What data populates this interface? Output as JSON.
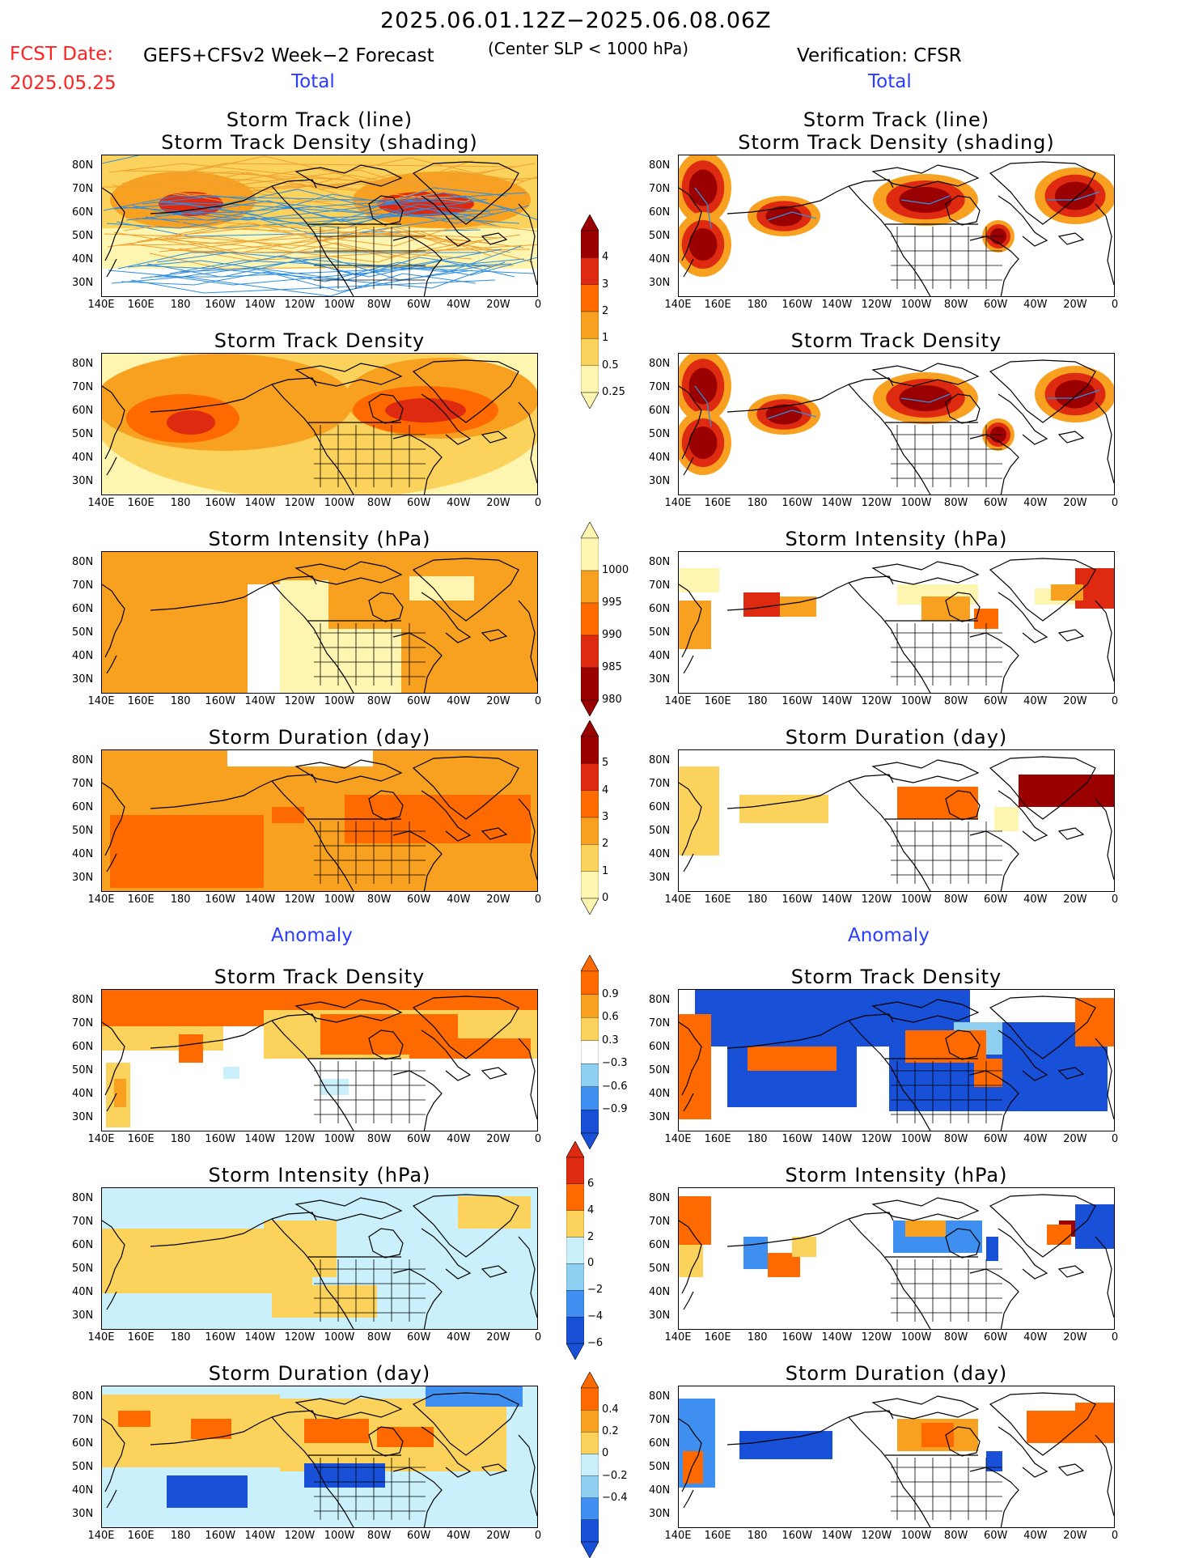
{
  "header": {
    "date_range": "2025.06.01.12Z−2025.06.08.06Z",
    "fcst_date_label": "FCST Date:",
    "fcst_date_value": "2025.05.25",
    "forecast_title": "GEFS+CFSv2 Week−2 Forecast",
    "criterion": "(Center SLP < 1000 hPa)",
    "verification": "Verification: CFSR",
    "total_left": "Total",
    "total_right": "Total",
    "anomaly_left": "Anomaly",
    "anomaly_right": "Anomaly"
  },
  "lat_labels": [
    "80N",
    "70N",
    "60N",
    "50N",
    "40N",
    "30N"
  ],
  "lon_labels": [
    "140E",
    "160E",
    "180",
    "160W",
    "140W",
    "120W",
    "100W",
    "80W",
    "60W",
    "40W",
    "20W",
    "0"
  ],
  "colors": {
    "red_dark": "#9a0000",
    "red": "#dd2a10",
    "orange_red": "#ff6a00",
    "orange": "#f8a020",
    "light_orange": "#fbd25c",
    "pale_yellow": "#fdf5b0",
    "blue_dark": "#1850d8",
    "blue": "#3e8ff0",
    "light_blue": "#8fd0f2",
    "pale_blue": "#c9f0fb",
    "track_orange": "#f0a030",
    "track_blue": "#2f8ee0"
  },
  "panels": [
    {
      "id": "fc-track-line",
      "title_lines": [
        "Storm Track (line)",
        "Storm Track Density (shading)"
      ]
    },
    {
      "id": "ob-track-line",
      "title_lines": [
        "Storm Track (line)",
        "Storm Track Density (shading)"
      ]
    },
    {
      "id": "fc-density",
      "title_lines": [
        "Storm Track Density"
      ]
    },
    {
      "id": "ob-density",
      "title_lines": [
        "Storm Track Density"
      ]
    },
    {
      "id": "fc-intensity",
      "title_lines": [
        "Storm Intensity (hPa)"
      ]
    },
    {
      "id": "ob-intensity",
      "title_lines": [
        "Storm Intensity (hPa)"
      ]
    },
    {
      "id": "fc-duration",
      "title_lines": [
        "Storm Duration (day)"
      ]
    },
    {
      "id": "ob-duration",
      "title_lines": [
        "Storm Duration (day)"
      ]
    },
    {
      "id": "fc-anom-density",
      "title_lines": [
        "Storm Track Density"
      ]
    },
    {
      "id": "ob-anom-density",
      "title_lines": [
        "Storm Track Density"
      ]
    },
    {
      "id": "fc-anom-intensity",
      "title_lines": [
        "Storm Intensity (hPa)"
      ]
    },
    {
      "id": "ob-anom-intensity",
      "title_lines": [
        "Storm Intensity (hPa)"
      ]
    },
    {
      "id": "fc-anom-duration",
      "title_lines": [
        "Storm Duration (day)"
      ]
    },
    {
      "id": "ob-anom-duration",
      "title_lines": [
        "Storm Duration (day)"
      ]
    }
  ],
  "colorbars": [
    {
      "id": "cb-density",
      "labels": [
        "4",
        "3",
        "2",
        "1",
        "0.5",
        "0.25"
      ],
      "colors": [
        "#9a0000",
        "#dd2a10",
        "#ff6a00",
        "#f8a020",
        "#fbd25c",
        "#fdf5b0"
      ]
    },
    {
      "id": "cb-intensity",
      "labels": [
        "1000",
        "995",
        "990",
        "985",
        "980"
      ],
      "colors": [
        "#fdf5b0",
        "#f8a020",
        "#ff6a00",
        "#dd2a10",
        "#9a0000"
      ]
    },
    {
      "id": "cb-duration",
      "labels": [
        "5",
        "4",
        "3",
        "2",
        "1",
        "0"
      ],
      "colors": [
        "#9a0000",
        "#dd2a10",
        "#ff6a00",
        "#f8a020",
        "#fbd25c",
        "#fdf5b0"
      ]
    },
    {
      "id": "cb-anom-density",
      "labels": [
        "0.9",
        "0.6",
        "0.3",
        "−0.3",
        "−0.6",
        "−0.9"
      ],
      "colors": [
        "#ff6a00",
        "#f8a020",
        "#fbd25c",
        "#ffffff",
        "#8fd0f2",
        "#3e8ff0",
        "#1850d8"
      ]
    },
    {
      "id": "cb-anom-intensity",
      "labels": [
        "6",
        "4",
        "2",
        "0",
        "−2",
        "−4",
        "−6"
      ],
      "colors": [
        "#dd2a10",
        "#ff6a00",
        "#fbd25c",
        "#c9f0fb",
        "#8fd0f2",
        "#3e8ff0",
        "#1850d8"
      ]
    },
    {
      "id": "cb-anom-duration",
      "labels": [
        "0.4",
        "0.2",
        "0",
        "−0.2",
        "−0.4"
      ],
      "colors": [
        "#ff6a00",
        "#f8a020",
        "#fbd25c",
        "#c9f0fb",
        "#8fd0f2",
        "#3e8ff0",
        "#1850d8"
      ]
    }
  ],
  "chart_data": {
    "type": "heatmap",
    "title": "2025.06.01.12Z−2025.06.08.06Z",
    "x_range": [
      "140E",
      "0"
    ],
    "y_range": [
      "25N",
      "85N"
    ],
    "grid": false
  }
}
